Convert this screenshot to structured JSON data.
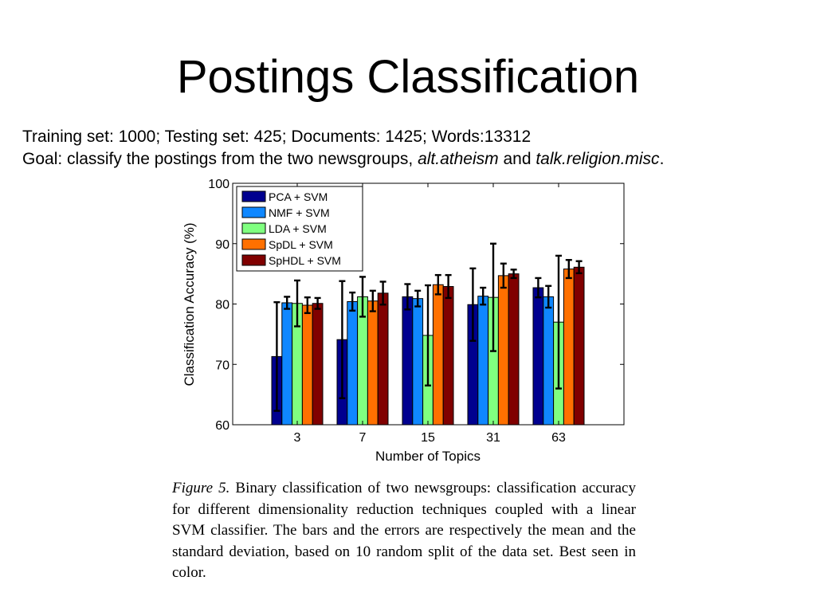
{
  "slide": {
    "title": "Postings Classification",
    "info_line1": "Training set: 1000; Testing set: 425; Documents: 1425; Words:13312",
    "info_line2_prefix": "Goal: classify the postings from the two newsgroups, ",
    "newsgroup_a": "alt.atheism",
    "info_and": " and ",
    "newsgroup_b": "talk.religion.misc",
    "info_end": "."
  },
  "caption": {
    "figure_label": "Figure 5.",
    "text": " Binary classification of two newsgroups: classification accuracy for different dimensionality reduction techniques coupled with a linear SVM classifier.  The bars and the errors are respectively the mean and the standard deviation, based on 10 random split of the data set. Best seen in color."
  },
  "chart_data": {
    "type": "bar",
    "title": "",
    "xlabel": "Number of Topics",
    "ylabel": "Classification Accuracy (%)",
    "categories": [
      "3",
      "7",
      "15",
      "31",
      "63"
    ],
    "ylim": [
      60,
      100
    ],
    "yticks": [
      60,
      70,
      80,
      90,
      100
    ],
    "legend_position": "top-left",
    "grid": false,
    "series": [
      {
        "name": "PCA + SVM",
        "color": "#00008f",
        "values": [
          71.3,
          74.1,
          81.2,
          79.9,
          82.7
        ],
        "errors": [
          9.0,
          9.7,
          2.1,
          6.0,
          1.6
        ]
      },
      {
        "name": "NMF + SVM",
        "color": "#0f87ff",
        "values": [
          80.2,
          80.4,
          80.9,
          81.3,
          81.2
        ],
        "errors": [
          1.0,
          1.5,
          1.3,
          1.4,
          1.8
        ]
      },
      {
        "name": "LDA + SVM",
        "color": "#80ff80",
        "values": [
          80.1,
          81.2,
          74.8,
          81.1,
          77.0
        ],
        "errors": [
          3.8,
          3.3,
          8.3,
          8.9,
          11.0
        ]
      },
      {
        "name": "SpDL + SVM",
        "color": "#ff7000",
        "values": [
          79.8,
          80.5,
          83.2,
          84.7,
          85.8
        ],
        "errors": [
          1.3,
          1.7,
          1.6,
          2.0,
          1.5
        ]
      },
      {
        "name": "SpHDL + SVM",
        "color": "#800000",
        "values": [
          80.1,
          81.8,
          82.9,
          85.0,
          86.1
        ],
        "errors": [
          0.9,
          1.9,
          1.9,
          0.7,
          1.0
        ]
      }
    ]
  }
}
